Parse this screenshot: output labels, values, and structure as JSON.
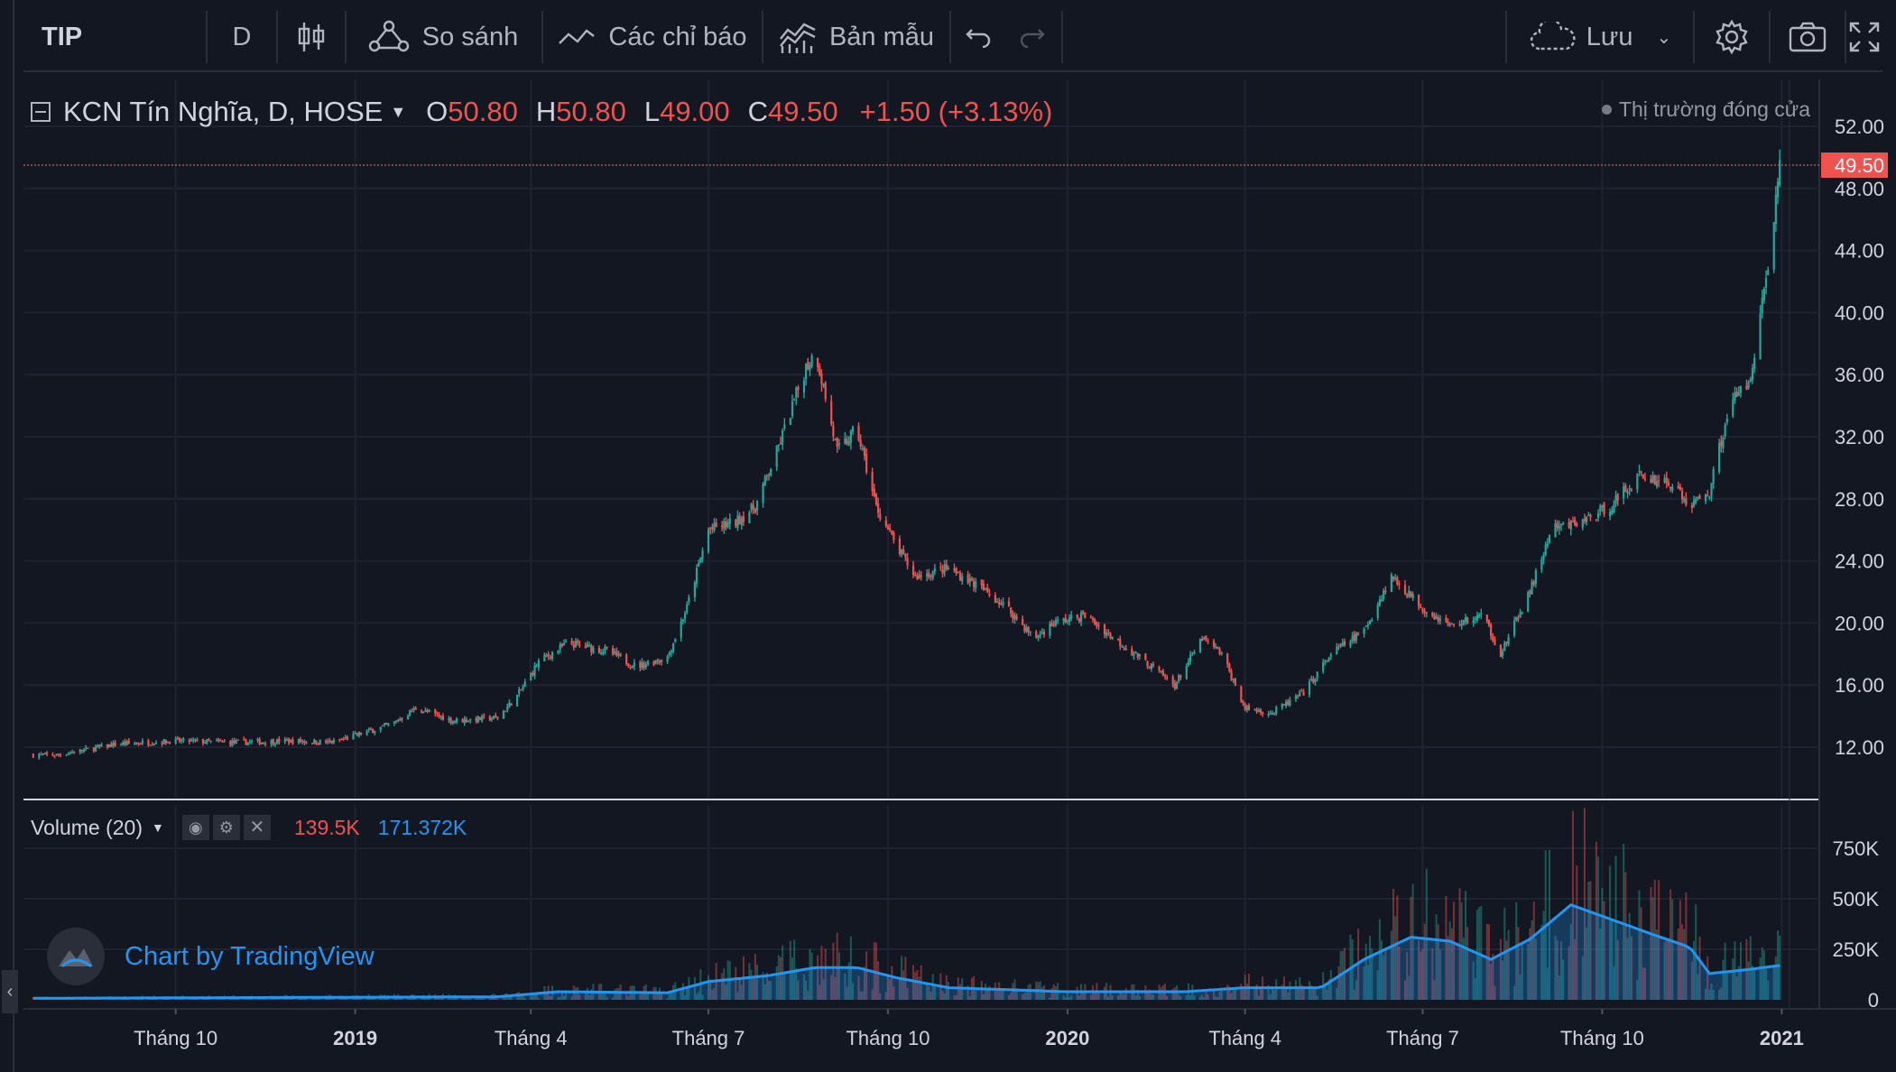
{
  "toolbar": {
    "symbol": "TIP",
    "interval": "D",
    "compare_label": "So sánh",
    "indicators_label": "Các chỉ báo",
    "templates_label": "Bản mẫu",
    "save_label": "Lưu"
  },
  "legend": {
    "title": "KCN Tín Nghĩa, D, HOSE",
    "o_label": "O",
    "o_value": "50.80",
    "h_label": "H",
    "h_value": "50.80",
    "l_label": "L",
    "l_value": "49.00",
    "c_label": "C",
    "c_value": "49.50",
    "change": "+1.50 (+3.13%)",
    "market_status": "Thị trường đóng cửa"
  },
  "volume_legend": {
    "title": "Volume (20)",
    "volume_value": "139.5K",
    "ma_value": "171.372K"
  },
  "watermark": "Chart by TradingView",
  "price_axis": {
    "ticks": [
      "52.00",
      "48.00",
      "44.00",
      "40.00",
      "36.00",
      "32.00",
      "28.00",
      "24.00",
      "20.00",
      "16.00",
      "12.00"
    ],
    "last_price": "49.50"
  },
  "volume_axis": {
    "ticks": [
      "750K",
      "500K",
      "250K",
      "0"
    ]
  },
  "time_axis": {
    "ticks": [
      "Tháng 10",
      "2019",
      "Tháng 4",
      "Tháng 7",
      "Tháng 10",
      "2020",
      "Tháng 4",
      "Tháng 7",
      "Tháng 10",
      "2021"
    ]
  },
  "colors": {
    "background": "#131722",
    "up": "#26a69a",
    "down": "#ef5350",
    "volume_ma": "#2196f3",
    "text": "#d1d4dc"
  },
  "chart_data": {
    "type": "candlestick",
    "title": "KCN Tín Nghĩa, D, HOSE",
    "x_ticks": [
      "Tháng 10",
      "2019",
      "Tháng 4",
      "Tháng 7",
      "Tháng 10",
      "2020",
      "Tháng 4",
      "Tháng 7",
      "Tháng 10",
      "2021"
    ],
    "ylim": [
      9,
      55
    ],
    "volume_ylim": [
      0,
      960000
    ],
    "close_series": [
      [
        "2018-08-01",
        11.5
      ],
      [
        "2018-09-01",
        12.2
      ],
      [
        "2018-10-01",
        12.4
      ],
      [
        "2018-11-01",
        12.3
      ],
      [
        "2018-12-01",
        12.4
      ],
      [
        "2018-12-20",
        12.3
      ],
      [
        "2019-01-20",
        13.5
      ],
      [
        "2019-02-01",
        14.5
      ],
      [
        "2019-02-20",
        13.7
      ],
      [
        "2019-03-15",
        13.9
      ],
      [
        "2019-03-25",
        15.3
      ],
      [
        "2019-04-05",
        17.5
      ],
      [
        "2019-04-20",
        18.7
      ],
      [
        "2019-05-10",
        18.2
      ],
      [
        "2019-05-25",
        17.2
      ],
      [
        "2019-06-10",
        17.8
      ],
      [
        "2019-06-20",
        21.0
      ],
      [
        "2019-07-01",
        26.0
      ],
      [
        "2019-07-15",
        26.5
      ],
      [
        "2019-07-25",
        27.5
      ],
      [
        "2019-08-05",
        31.0
      ],
      [
        "2019-08-20",
        36.5
      ],
      [
        "2019-08-25",
        37.5
      ],
      [
        "2019-09-05",
        31.0
      ],
      [
        "2019-09-15",
        32.5
      ],
      [
        "2019-09-25",
        27.5
      ],
      [
        "2019-10-05",
        25.0
      ],
      [
        "2019-10-15",
        23.0
      ],
      [
        "2019-11-01",
        23.5
      ],
      [
        "2019-11-15",
        22.5
      ],
      [
        "2019-12-01",
        21.0
      ],
      [
        "2019-12-15",
        19.0
      ],
      [
        "2019-12-25",
        20.0
      ],
      [
        "2020-01-10",
        20.5
      ],
      [
        "2020-01-25",
        19.0
      ],
      [
        "2020-02-10",
        17.5
      ],
      [
        "2020-02-25",
        16.0
      ],
      [
        "2020-03-10",
        19.0
      ],
      [
        "2020-03-20",
        18.0
      ],
      [
        "2020-04-01",
        14.5
      ],
      [
        "2020-04-15",
        14.2
      ],
      [
        "2020-05-01",
        15.5
      ],
      [
        "2020-05-15",
        18.0
      ],
      [
        "2020-06-01",
        19.5
      ],
      [
        "2020-06-15",
        23.0
      ],
      [
        "2020-07-01",
        21.0
      ],
      [
        "2020-07-15",
        19.8
      ],
      [
        "2020-08-01",
        20.5
      ],
      [
        "2020-08-10",
        18.0
      ],
      [
        "2020-08-25",
        22.0
      ],
      [
        "2020-09-05",
        26.0
      ],
      [
        "2020-09-20",
        26.5
      ],
      [
        "2020-10-05",
        27.5
      ],
      [
        "2020-10-20",
        29.5
      ],
      [
        "2020-11-05",
        29.0
      ],
      [
        "2020-11-15",
        27.5
      ],
      [
        "2020-11-25",
        28.5
      ],
      [
        "2020-12-05",
        34.0
      ],
      [
        "2020-12-15",
        35.5
      ],
      [
        "2020-12-20",
        39.0
      ],
      [
        "2020-12-25",
        43.0
      ],
      [
        "2020-12-31",
        49.5
      ]
    ],
    "volume_ma_series": [
      [
        "2018-08-01",
        8000
      ],
      [
        "2019-03-15",
        15000
      ],
      [
        "2019-04-15",
        40000
      ],
      [
        "2019-06-10",
        35000
      ],
      [
        "2019-07-01",
        90000
      ],
      [
        "2019-08-01",
        120000
      ],
      [
        "2019-08-25",
        160000
      ],
      [
        "2019-09-15",
        160000
      ],
      [
        "2019-10-05",
        110000
      ],
      [
        "2019-11-01",
        60000
      ],
      [
        "2020-01-01",
        40000
      ],
      [
        "2020-03-01",
        40000
      ],
      [
        "2020-04-01",
        60000
      ],
      [
        "2020-05-10",
        60000
      ],
      [
        "2020-06-01",
        200000
      ],
      [
        "2020-06-25",
        310000
      ],
      [
        "2020-07-15",
        290000
      ],
      [
        "2020-08-05",
        200000
      ],
      [
        "2020-08-25",
        300000
      ],
      [
        "2020-09-15",
        470000
      ],
      [
        "2020-10-05",
        400000
      ],
      [
        "2020-10-25",
        330000
      ],
      [
        "2020-11-15",
        260000
      ],
      [
        "2020-11-25",
        130000
      ],
      [
        "2020-12-15",
        150000
      ],
      [
        "2020-12-31",
        170000
      ]
    ]
  }
}
